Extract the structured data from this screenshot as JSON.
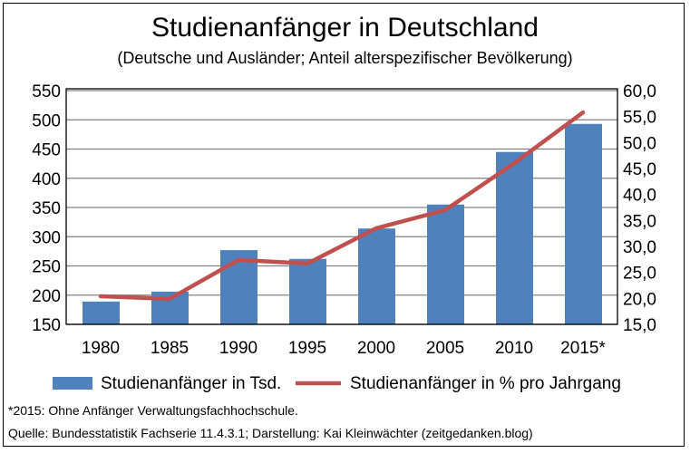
{
  "chart_data": {
    "type": "bar+line",
    "title": "Studienanfänger in Deutschland",
    "subtitle": "(Deutsche und Ausländer; Anteil alterspezifischer Bevölkerung)",
    "categories": [
      "1980",
      "1985",
      "1990",
      "1995",
      "2000",
      "2005",
      "2010",
      "2015*"
    ],
    "series": [
      {
        "name": "Studienanfänger in Tsd.",
        "type": "bar",
        "axis": "left",
        "color": "#4F81BD",
        "values": [
          189,
          206,
          277,
          262,
          314,
          355,
          445,
          493
        ]
      },
      {
        "name": "Studienanfänger in % pro Jahrgang",
        "type": "line",
        "axis": "right",
        "color": "#C0504D",
        "values": [
          20.4,
          19.9,
          27.4,
          26.7,
          33.5,
          37.0,
          46.0,
          55.8
        ]
      }
    ],
    "ylim_left": [
      150,
      550
    ],
    "yticks_left": [
      "150",
      "200",
      "250",
      "300",
      "350",
      "400",
      "450",
      "500",
      "550"
    ],
    "ylim_right": [
      15,
      60
    ],
    "yticks_right": [
      "15,0",
      "20,0",
      "25,0",
      "30,0",
      "35,0",
      "40,0",
      "45,0",
      "50,0",
      "55,0",
      "60,0"
    ],
    "grid": true,
    "legend": "bottom"
  },
  "notes": {
    "footnote": "*2015: Ohne Anfänger Verwaltungsfachhochschule.",
    "source": "Quelle: Bundesstatistik Fachserie 11.4.3.1; Darstellung: Kai Kleinwächter (zeitgedanken.blog)"
  }
}
